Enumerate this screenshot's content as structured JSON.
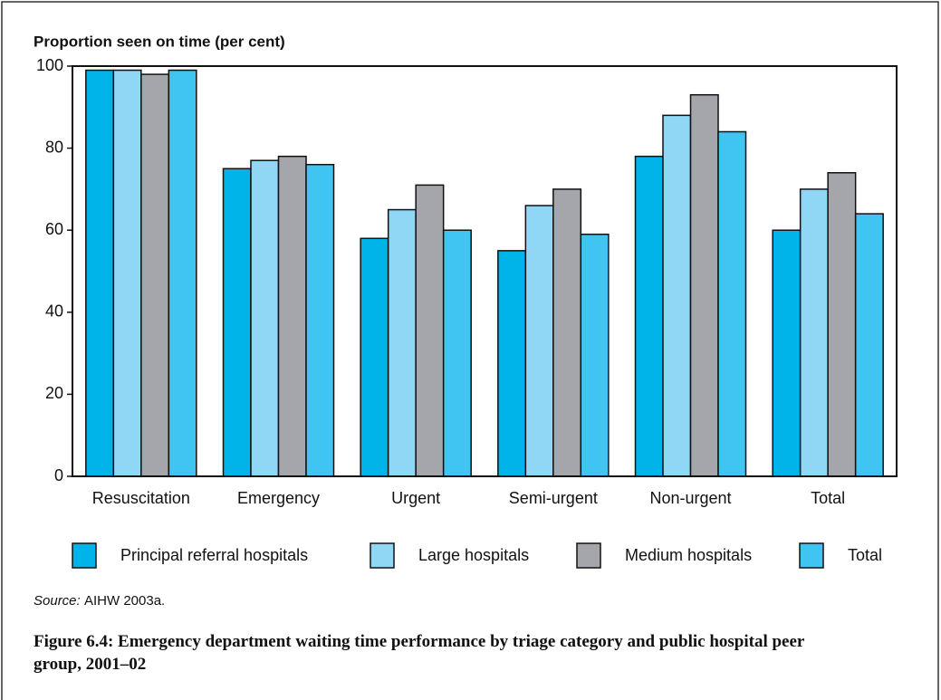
{
  "chart_data": {
    "type": "bar",
    "ylabel": "Proportion seen on time (per cent)",
    "categories": [
      "Resuscitation",
      "Emergency",
      "Urgent",
      "Semi-urgent",
      "Non-urgent",
      "Total"
    ],
    "series": [
      {
        "name": "Principal referral hospitals",
        "color": "#00b3e8",
        "values": [
          99,
          75,
          58,
          55,
          78,
          60
        ]
      },
      {
        "name": "Large hospitals",
        "color": "#8fd7f5",
        "values": [
          99,
          77,
          65,
          66,
          88,
          70
        ]
      },
      {
        "name": "Medium hospitals",
        "color": "#a4a6ab",
        "values": [
          98,
          78,
          71,
          70,
          93,
          74
        ]
      },
      {
        "name": "Total",
        "color": "#40c5f2",
        "values": [
          99,
          76,
          60,
          59,
          84,
          64
        ]
      }
    ],
    "ylim": [
      0,
      100
    ],
    "yticks": [
      0,
      20,
      40,
      60,
      80,
      100
    ],
    "source_label": "Source:",
    "source": "AIHW 2003a.",
    "caption": "Figure 6.4: Emergency department waiting time performance by triage category and public hospital peer group, 2001–02"
  }
}
